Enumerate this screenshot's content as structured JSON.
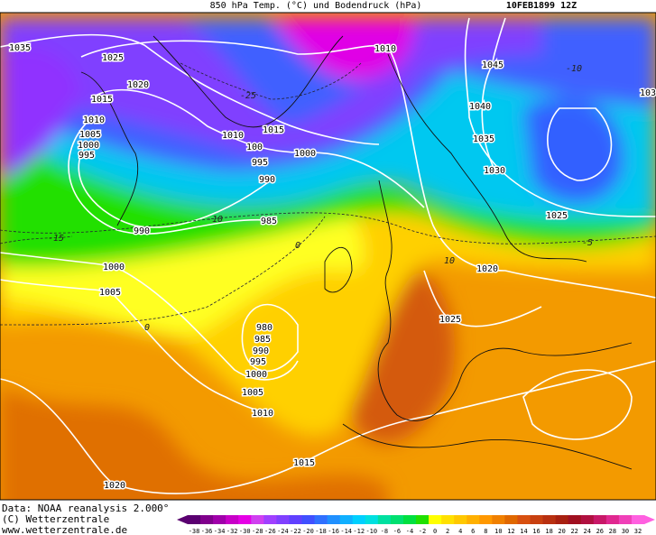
{
  "header": {
    "title": "850 hPa Temp. (°C) und Bodendruck (hPa)",
    "date": "10FEB1899 12Z"
  },
  "isobar_labels": [
    1035,
    1025,
    1020,
    1015,
    1010,
    1005,
    1000,
    995,
    1010,
    1015,
    100,
    1000,
    995,
    990,
    990,
    985,
    1000,
    1005,
    1010,
    1045,
    1040,
    1035,
    1030,
    1025,
    1020,
    1025,
    980,
    985,
    990,
    995,
    1000,
    1005,
    1010,
    1015,
    1020,
    103
  ],
  "temperature_labels": [
    -25,
    -10,
    -15,
    0,
    0,
    -5,
    -10,
    10
  ],
  "footer": {
    "source": "Data: NOAA reanalysis 2.000°",
    "copyright": "(C) Wetterzentrale",
    "url": "www.wetterzentrale.de"
  },
  "colorbar": {
    "ticks": [
      -38,
      -36,
      -34,
      -32,
      -30,
      -28,
      -26,
      -24,
      -22,
      -20,
      -18,
      -16,
      -14,
      -12,
      -10,
      -8,
      -6,
      -4,
      -2,
      0,
      2,
      4,
      6,
      8,
      10,
      12,
      14,
      16,
      18,
      20,
      22,
      24,
      26,
      28,
      30,
      32
    ],
    "colors": [
      "#5a0070",
      "#80008c",
      "#a000aa",
      "#c800c8",
      "#e600e6",
      "#d040f0",
      "#a040ff",
      "#8040ff",
      "#6040ff",
      "#4050ff",
      "#3070ff",
      "#2090ff",
      "#10b0ff",
      "#00d0ff",
      "#00e0e0",
      "#00e0a0",
      "#00e070",
      "#00e040",
      "#20e000",
      "#ffff00",
      "#ffe000",
      "#ffc800",
      "#ffb000",
      "#ff9800",
      "#f08000",
      "#e06800",
      "#d85010",
      "#c84010",
      "#b83010",
      "#a82010",
      "#a01020",
      "#b01040",
      "#c81868",
      "#e02890",
      "#f040b8",
      "#ff60e0"
    ]
  }
}
